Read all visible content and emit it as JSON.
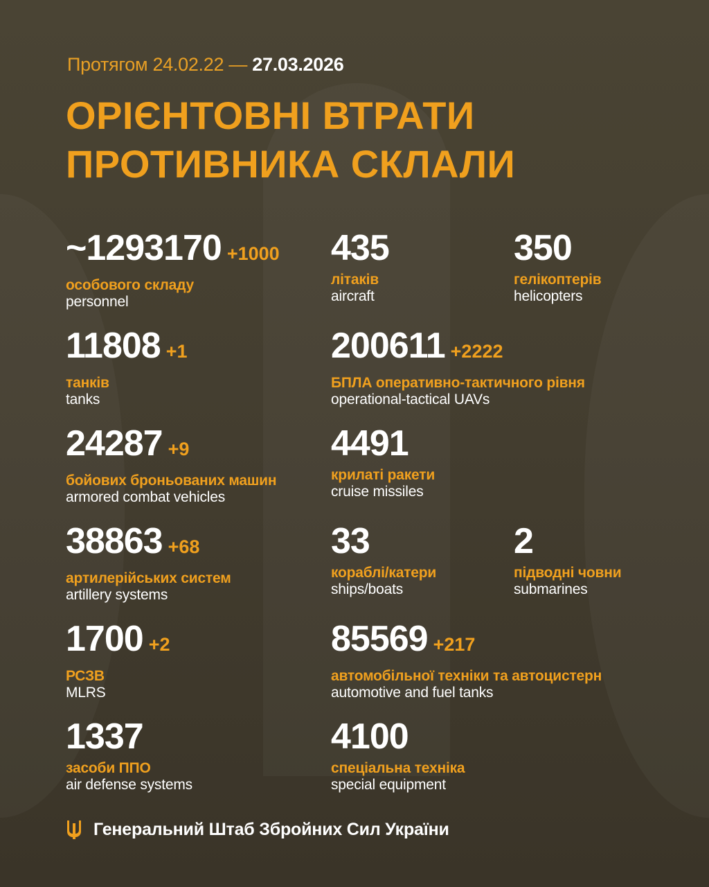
{
  "header": {
    "period_prefix": "Протягом 24.02.22 —",
    "period_end": "27.03.2026",
    "title_line1": "ОРІЄНТОВНІ ВТРАТИ",
    "title_line2": "ПРОТИВНИКА СКЛАЛИ"
  },
  "stats": [
    {
      "value": "~1293170",
      "delta": "+1000",
      "ua": "особового складу",
      "en": "personnel"
    },
    {
      "value": "435",
      "delta": "",
      "ua": "літаків",
      "en": "aircraft"
    },
    {
      "value": "350",
      "delta": "",
      "ua": "гелікоптерів",
      "en": "helicopters"
    },
    {
      "value": "11808",
      "delta": "+1",
      "ua": "танків",
      "en": "tanks"
    },
    {
      "value": "200611",
      "delta": "+2222",
      "ua": "БПЛА оперативно-тактичного рівня",
      "en": "operational-tactical UAVs"
    },
    {
      "value": "24287",
      "delta": "+9",
      "ua": "бойових броньованих машин",
      "en": "armored combat vehicles"
    },
    {
      "value": "4491",
      "delta": "",
      "ua": "крилаті ракети",
      "en": "cruise missiles"
    },
    {
      "value": "38863",
      "delta": "+68",
      "ua": "артилерійських систем",
      "en": "artillery systems"
    },
    {
      "value": "33",
      "delta": "",
      "ua": "кораблі/катери",
      "en": "ships/boats"
    },
    {
      "value": "2",
      "delta": "",
      "ua": "підводні човни",
      "en": "submarines"
    },
    {
      "value": "1700",
      "delta": "+2",
      "ua": "РСЗВ",
      "en": "MLRS"
    },
    {
      "value": "85569",
      "delta": "+217",
      "ua": "автомобільної техніки та автоцистерн",
      "en": "automotive and fuel tanks"
    },
    {
      "value": "1337",
      "delta": "",
      "ua": "засоби ППО",
      "en": "air defense systems"
    },
    {
      "value": "4100",
      "delta": "",
      "ua": "спеціальна техніка",
      "en": "special equipment"
    }
  ],
  "footer": {
    "org": "Генеральний Штаб Збройних Сил України",
    "icon": "trident-icon"
  },
  "colors": {
    "accent": "#f0a01e",
    "background": "#433d2f",
    "text": "#ffffff"
  }
}
